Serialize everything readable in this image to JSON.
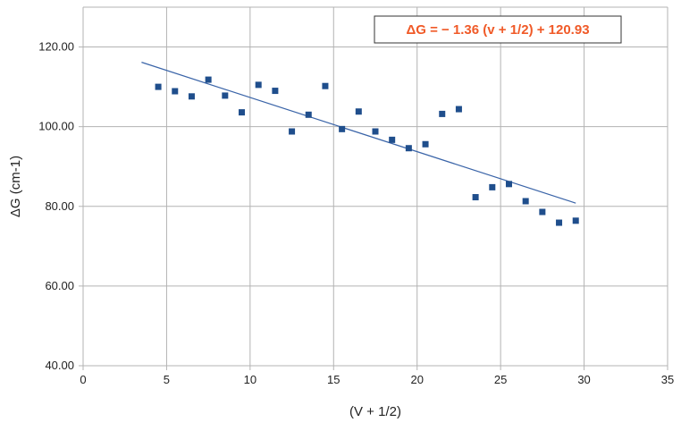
{
  "chart_data": {
    "type": "scatter",
    "title": "",
    "xlabel": "(V + 1/2)",
    "ylabel": "ΔG (cm-1)",
    "xlim": [
      0,
      35
    ],
    "ylim": [
      40,
      130
    ],
    "x_ticks": [
      0,
      5,
      10,
      15,
      20,
      25,
      30,
      35
    ],
    "x_tick_labels": [
      "0",
      "5",
      "10",
      "15",
      "20",
      "25",
      "30",
      "35"
    ],
    "y_ticks": [
      40,
      60,
      80,
      100,
      120
    ],
    "y_tick_labels": [
      "40.00",
      "60.00",
      "80.00",
      "100.00",
      "120.00"
    ],
    "grid": true,
    "legend": "none",
    "series": [
      {
        "marker_color": "#1f4e8c",
        "x": [
          4.5,
          5.5,
          6.5,
          7.5,
          8.5,
          9.5,
          10.5,
          11.5,
          12.5,
          13.5,
          14.5,
          15.5,
          16.5,
          17.5,
          18.5,
          19.5,
          20.5,
          21.5,
          22.5,
          23.5,
          24.5,
          25.5,
          26.5,
          27.5,
          28.5,
          29.5
        ],
        "y": [
          110.0,
          108.9,
          107.6,
          111.8,
          107.8,
          103.6,
          110.5,
          109.0,
          98.8,
          103.0,
          110.2,
          99.4,
          103.8,
          98.8,
          96.7,
          94.6,
          95.6,
          103.2,
          104.4,
          82.3,
          84.8,
          85.6,
          81.3,
          78.6,
          75.9,
          76.4
        ]
      }
    ],
    "trendline": {
      "color": "#3a64a8",
      "slope": -1.36,
      "intercept": 120.93,
      "x_start": 3.5,
      "x_end": 29.5
    },
    "annotation": {
      "text": "ΔG = −  1.36  (v + 1/2) +  120.93",
      "color": "#f05a28"
    }
  }
}
